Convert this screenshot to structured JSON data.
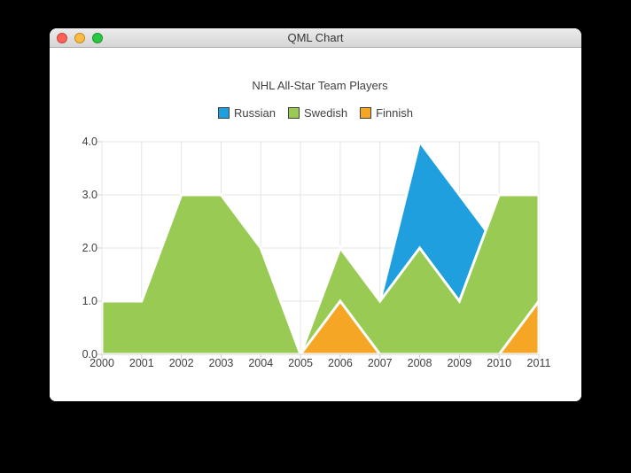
{
  "window": {
    "title": "QML Chart",
    "traffic_lights": [
      {
        "name": "close",
        "color": "#ff5f57"
      },
      {
        "name": "minimize",
        "color": "#fdbc40"
      },
      {
        "name": "zoom",
        "color": "#28c840"
      }
    ]
  },
  "chart_data": {
    "type": "area",
    "title": "NHL All-Star Team Players",
    "x": [
      2000,
      2001,
      2002,
      2003,
      2004,
      2005,
      2006,
      2007,
      2008,
      2009,
      2010,
      2011
    ],
    "x_ticks": [
      "2000",
      "2001",
      "2002",
      "2003",
      "2004",
      "2005",
      "2006",
      "2007",
      "2008",
      "2009",
      "2010",
      "2011"
    ],
    "y_ticks": [
      "0.0",
      "1.0",
      "2.0",
      "3.0",
      "4.0"
    ],
    "ylim": [
      0,
      4
    ],
    "grid": true,
    "legend_position": "top",
    "series_border_color": "#ffffff",
    "series": [
      {
        "name": "Russian",
        "color": "#209fdf",
        "values": [
          1,
          1,
          1,
          1,
          1,
          0,
          1,
          1,
          4,
          3,
          2,
          1
        ]
      },
      {
        "name": "Swedish",
        "color": "#99ca53",
        "values": [
          1,
          1,
          3,
          3,
          2,
          0,
          2,
          1,
          2,
          1,
          3,
          3
        ]
      },
      {
        "name": "Finnish",
        "color": "#f6a625",
        "values": [
          0,
          0,
          0,
          0,
          0,
          0,
          1,
          0,
          0,
          0,
          0,
          1
        ]
      }
    ],
    "colors": {
      "grid_line": "#e4e4e4",
      "axis_line": "#d6d6d6",
      "tick_mark": "#d0d0d0",
      "label_text": "#404040"
    }
  }
}
